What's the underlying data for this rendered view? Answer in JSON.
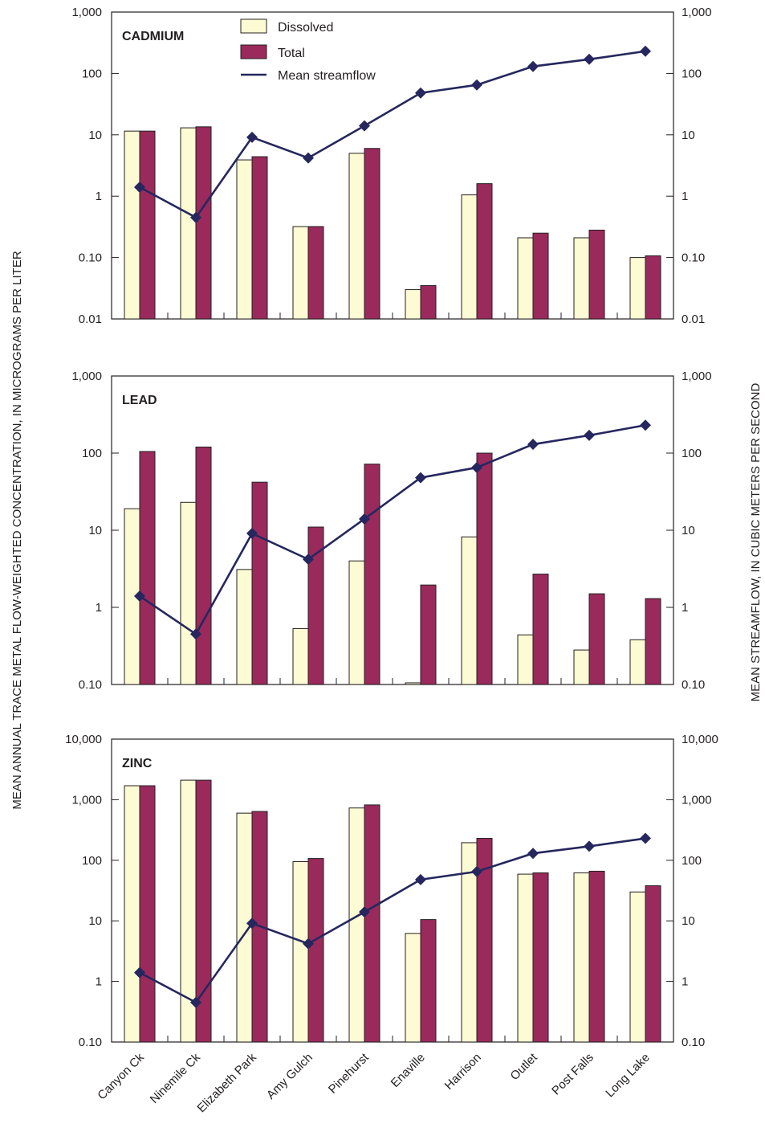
{
  "chart_data": {
    "type": "bar",
    "ylabel": "MEAN ANNUAL TRACE METAL FLOW-WEIGHTED CONCENTRATION, IN MICROGRAMS PER LITER",
    "y2label": "MEAN STREAMFLOW, IN CUBIC METERS PER SECOND",
    "yscale": "log",
    "y2scale": "log",
    "legend": {
      "position": "top-center",
      "entries": [
        "Dissolved",
        "Total",
        "Mean streamflow"
      ]
    },
    "colors": {
      "dissolved_fill": "#fdfbd3",
      "total_fill": "#9a2a5c",
      "streamflow_line": "#25275e",
      "bar_stroke": "#231f20"
    },
    "categories": [
      "Canyon Ck",
      "Ninemile Ck",
      "Elizabeth Park",
      "Amy Gulch",
      "Pinehurst",
      "Enaville",
      "Harrison",
      "Outlet",
      "Post Falls",
      "Long Lake"
    ],
    "streamflow": [
      1.4,
      0.45,
      9.1,
      4.2,
      14,
      48,
      65,
      130,
      170,
      230
    ],
    "panels": [
      {
        "title": "CADMIUM",
        "ylim": [
          0.01,
          1000
        ],
        "yticks": [
          "0.01",
          "0.10",
          "1",
          "10",
          "100",
          "1,000"
        ],
        "y2ticks": [
          "0.01",
          "0.10",
          "1",
          "10",
          "100",
          "1,000"
        ],
        "series": [
          {
            "name": "Dissolved",
            "values": [
              11.5,
              13,
              3.9,
              0.32,
              5,
              0.03,
              1.05,
              0.21,
              0.21,
              0.1
            ]
          },
          {
            "name": "Total",
            "values": [
              11.5,
              13.5,
              4.4,
              0.32,
              6,
              0.035,
              1.6,
              0.25,
              0.28,
              0.107
            ]
          }
        ]
      },
      {
        "title": "LEAD",
        "ylim": [
          0.1,
          1000
        ],
        "yticks": [
          "0.10",
          "1",
          "10",
          "100",
          "1,000"
        ],
        "y2ticks": [
          "0.10",
          "1",
          "10",
          "100",
          "1,000"
        ],
        "series": [
          {
            "name": "Dissolved",
            "values": [
              19,
              23,
              3.1,
              0.53,
              4,
              0.105,
              8.2,
              0.44,
              0.28,
              0.38
            ]
          },
          {
            "name": "Total",
            "values": [
              105,
              120,
              42,
              11,
              72,
              1.95,
              100,
              2.7,
              1.5,
              1.3
            ]
          }
        ]
      },
      {
        "title": "ZINC",
        "ylim": [
          0.1,
          10000
        ],
        "yticks": [
          "0.10",
          "1",
          "10",
          "100",
          "1,000",
          "10,000"
        ],
        "y2ticks": [
          "0.10",
          "1",
          "10",
          "100",
          "1,000",
          "10,000"
        ],
        "series": [
          {
            "name": "Dissolved",
            "values": [
              1700,
              2100,
              600,
              95,
              730,
              6.2,
              195,
              59,
              62,
              30
            ]
          },
          {
            "name": "Total",
            "values": [
              1700,
              2100,
              640,
              107,
              820,
              10.5,
              230,
              62,
              66,
              38
            ]
          }
        ]
      }
    ]
  }
}
